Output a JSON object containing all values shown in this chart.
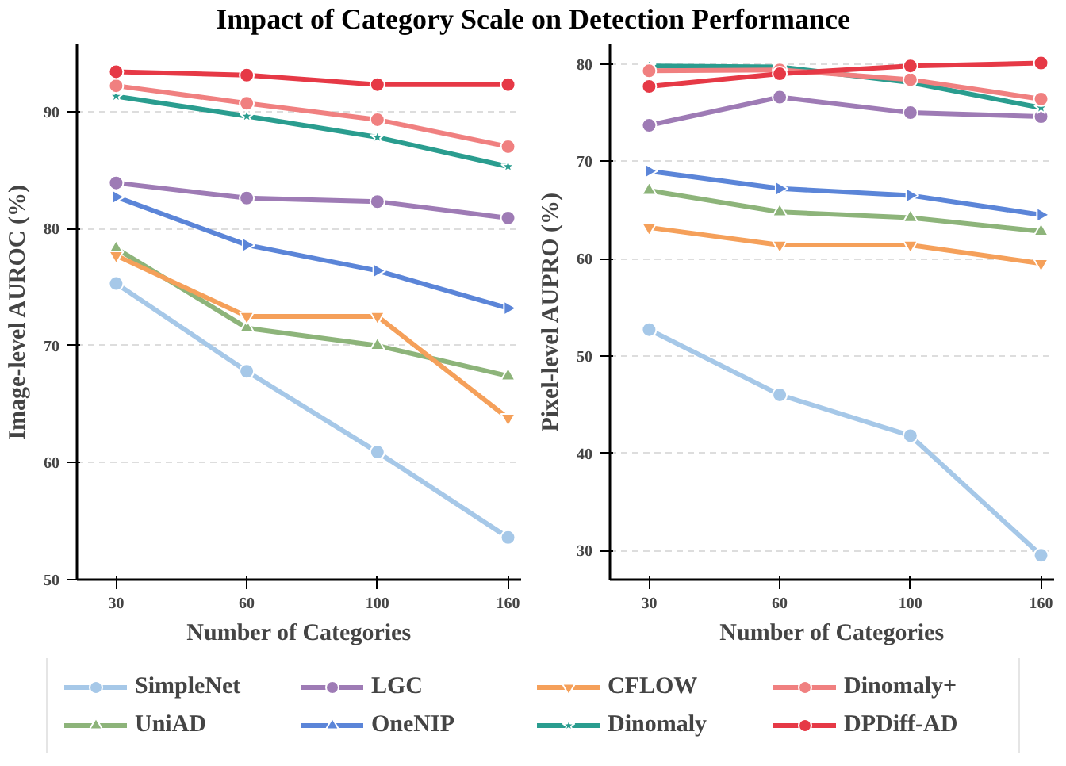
{
  "chart_data": [
    {
      "type": "line",
      "title": "Impact of Category Scale on Detection Performance",
      "xlabel": "Number of Categories",
      "ylabel": "Image-level AUROC (%)",
      "categories": [
        "30",
        "60",
        "100",
        "160"
      ],
      "ylim": [
        50,
        95.8
      ],
      "yticks": [
        50,
        60,
        70,
        80,
        90
      ],
      "grid": "y",
      "legend": "bottom",
      "series": [
        {
          "name": "SimpleNet",
          "color": "#a6c8e8",
          "marker": "circle",
          "values": [
            75.3,
            67.8,
            60.9,
            53.6
          ]
        },
        {
          "name": "UniAD",
          "color": "#8db47a",
          "marker": "triangle",
          "values": [
            78.3,
            71.5,
            70.0,
            67.4
          ]
        },
        {
          "name": "LGC",
          "color": "#9e7bb5",
          "marker": "circle",
          "values": [
            83.9,
            82.6,
            82.3,
            80.9
          ]
        },
        {
          "name": "OneNIP",
          "color": "#5b85d8",
          "marker": "triangle-right",
          "values": [
            82.7,
            78.6,
            76.4,
            73.2
          ]
        },
        {
          "name": "CFLOW",
          "color": "#f5a05a",
          "marker": "triangle-down",
          "values": [
            77.7,
            72.5,
            72.5,
            63.8
          ]
        },
        {
          "name": "Dinomaly",
          "color": "#2a9d8f",
          "marker": "star",
          "values": [
            91.3,
            89.6,
            87.8,
            85.3
          ]
        },
        {
          "name": "Dinomaly+",
          "color": "#f08080",
          "marker": "circle",
          "values": [
            92.2,
            90.7,
            89.3,
            87.0
          ]
        },
        {
          "name": "DPDiff-AD",
          "color": "#e63946",
          "marker": "circle",
          "values": [
            93.4,
            93.1,
            92.3,
            92.3
          ]
        }
      ]
    },
    {
      "type": "line",
      "xlabel": "Number of Categories",
      "ylabel": "Pixel-level AUPRO (%)",
      "categories": [
        "30",
        "60",
        "100",
        "160"
      ],
      "ylim": [
        27,
        82.1
      ],
      "yticks": [
        30,
        40,
        50,
        60,
        70,
        80
      ],
      "grid": "y",
      "series": [
        {
          "color": "#a6c8e8",
          "marker": "circle",
          "values": [
            52.7,
            46.0,
            41.8,
            29.5
          ]
        },
        {
          "color": "#8db47a",
          "marker": "triangle",
          "values": [
            67.0,
            64.8,
            64.2,
            62.8
          ]
        },
        {
          "color": "#9e7bb5",
          "marker": "circle",
          "values": [
            73.7,
            76.6,
            75.0,
            74.6
          ]
        },
        {
          "color": "#5b85d8",
          "marker": "triangle-right",
          "values": [
            69.0,
            67.2,
            66.5,
            64.5
          ]
        },
        {
          "color": "#f5a05a",
          "marker": "triangle-down",
          "values": [
            63.2,
            61.4,
            61.4,
            59.5
          ]
        },
        {
          "color": "#2a9d8f",
          "marker": "star",
          "values": [
            79.8,
            79.7,
            78.1,
            75.5
          ]
        },
        {
          "color": "#f08080",
          "marker": "circle",
          "values": [
            79.3,
            79.4,
            78.4,
            76.4
          ]
        },
        {
          "color": "#e63946",
          "marker": "circle",
          "values": [
            77.7,
            79.0,
            79.8,
            80.1
          ]
        }
      ]
    }
  ]
}
